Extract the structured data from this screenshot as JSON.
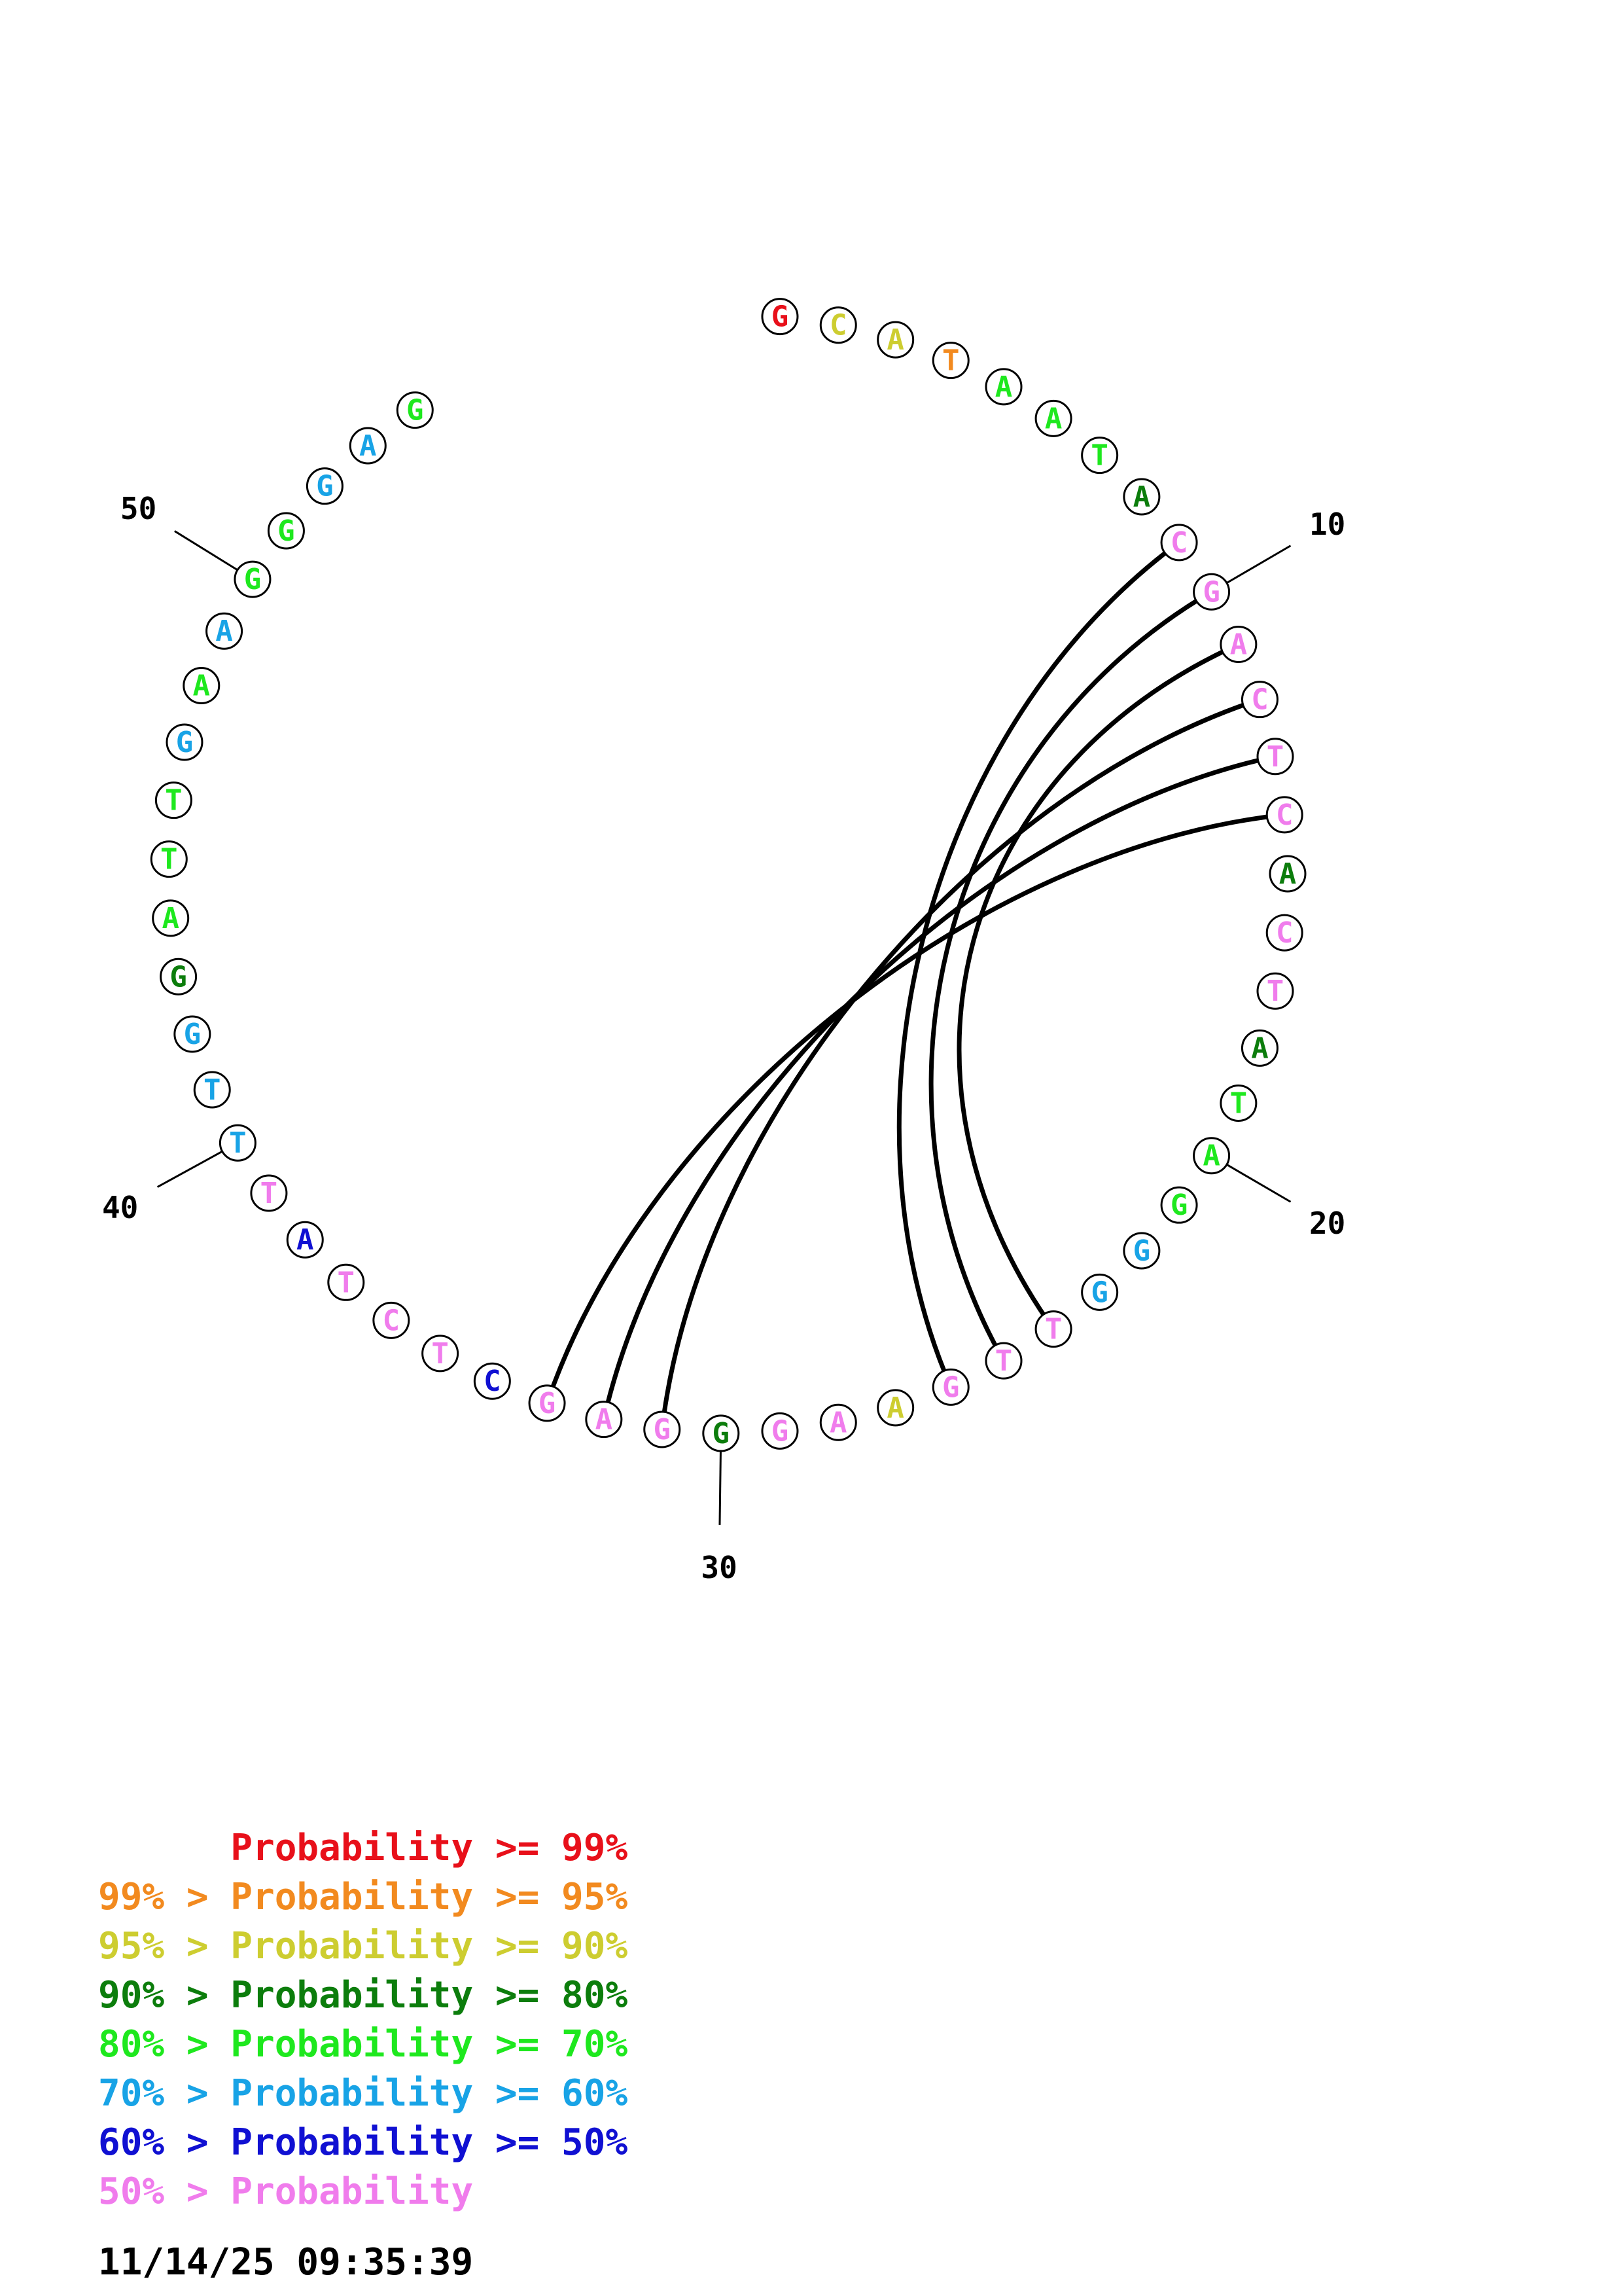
{
  "colors": {
    "red": "#e8101a",
    "orange": "#f28a1f",
    "yellow": "#cdcd30",
    "darkgreen": "#0c7d0c",
    "green": "#1ee81e",
    "cyan": "#18a3e6",
    "blue": "#1010d2",
    "pink": "#f07cec"
  },
  "sequence": [
    {
      "n": 1,
      "base": "G",
      "color": "red"
    },
    {
      "n": 2,
      "base": "C",
      "color": "yellow"
    },
    {
      "n": 3,
      "base": "A",
      "color": "yellow"
    },
    {
      "n": 4,
      "base": "T",
      "color": "orange"
    },
    {
      "n": 5,
      "base": "A",
      "color": "green"
    },
    {
      "n": 6,
      "base": "A",
      "color": "green"
    },
    {
      "n": 7,
      "base": "T",
      "color": "green"
    },
    {
      "n": 8,
      "base": "A",
      "color": "darkgreen"
    },
    {
      "n": 9,
      "base": "C",
      "color": "pink"
    },
    {
      "n": 10,
      "base": "G",
      "color": "pink"
    },
    {
      "n": 11,
      "base": "A",
      "color": "pink"
    },
    {
      "n": 12,
      "base": "C",
      "color": "pink"
    },
    {
      "n": 13,
      "base": "T",
      "color": "pink"
    },
    {
      "n": 14,
      "base": "C",
      "color": "pink"
    },
    {
      "n": 15,
      "base": "A",
      "color": "darkgreen"
    },
    {
      "n": 16,
      "base": "C",
      "color": "pink"
    },
    {
      "n": 17,
      "base": "T",
      "color": "pink"
    },
    {
      "n": 18,
      "base": "A",
      "color": "darkgreen"
    },
    {
      "n": 19,
      "base": "T",
      "color": "green"
    },
    {
      "n": 20,
      "base": "A",
      "color": "green"
    },
    {
      "n": 21,
      "base": "G",
      "color": "green"
    },
    {
      "n": 22,
      "base": "G",
      "color": "cyan"
    },
    {
      "n": 23,
      "base": "G",
      "color": "cyan"
    },
    {
      "n": 24,
      "base": "T",
      "color": "pink"
    },
    {
      "n": 25,
      "base": "T",
      "color": "pink"
    },
    {
      "n": 26,
      "base": "G",
      "color": "pink"
    },
    {
      "n": 27,
      "base": "A",
      "color": "yellow"
    },
    {
      "n": 28,
      "base": "A",
      "color": "pink"
    },
    {
      "n": 29,
      "base": "G",
      "color": "pink"
    },
    {
      "n": 30,
      "base": "G",
      "color": "darkgreen"
    },
    {
      "n": 31,
      "base": "G",
      "color": "pink"
    },
    {
      "n": 32,
      "base": "A",
      "color": "pink"
    },
    {
      "n": 33,
      "base": "G",
      "color": "pink"
    },
    {
      "n": 34,
      "base": "C",
      "color": "blue"
    },
    {
      "n": 35,
      "base": "T",
      "color": "pink"
    },
    {
      "n": 36,
      "base": "C",
      "color": "pink"
    },
    {
      "n": 37,
      "base": "T",
      "color": "pink"
    },
    {
      "n": 38,
      "base": "A",
      "color": "blue"
    },
    {
      "n": 39,
      "base": "T",
      "color": "pink"
    },
    {
      "n": 40,
      "base": "T",
      "color": "cyan"
    },
    {
      "n": 41,
      "base": "T",
      "color": "cyan"
    },
    {
      "n": 42,
      "base": "G",
      "color": "cyan"
    },
    {
      "n": 43,
      "base": "G",
      "color": "darkgreen"
    },
    {
      "n": 44,
      "base": "A",
      "color": "green"
    },
    {
      "n": 45,
      "base": "T",
      "color": "green"
    },
    {
      "n": 46,
      "base": "T",
      "color": "green"
    },
    {
      "n": 47,
      "base": "G",
      "color": "cyan"
    },
    {
      "n": 48,
      "base": "A",
      "color": "green"
    },
    {
      "n": 49,
      "base": "A",
      "color": "cyan"
    },
    {
      "n": 50,
      "base": "G",
      "color": "green"
    },
    {
      "n": 51,
      "base": "G",
      "color": "green"
    },
    {
      "n": 52,
      "base": "G",
      "color": "cyan"
    },
    {
      "n": 53,
      "base": "A",
      "color": "cyan"
    },
    {
      "n": 54,
      "base": "G",
      "color": "green"
    }
  ],
  "pairs": [
    [
      9,
      26
    ],
    [
      10,
      25
    ],
    [
      11,
      24
    ],
    [
      12,
      31
    ],
    [
      13,
      32
    ],
    [
      14,
      33
    ]
  ],
  "tick_labels": [
    "10",
    "20",
    "30",
    "40",
    "50"
  ],
  "legend": [
    {
      "text": "      Probability >= 99%",
      "color": "red"
    },
    {
      "text": "99% > Probability >= 95%",
      "color": "orange"
    },
    {
      "text": "95% > Probability >= 90%",
      "color": "yellow"
    },
    {
      "text": "90% > Probability >= 80%",
      "color": "darkgreen"
    },
    {
      "text": "80% > Probability >= 70%",
      "color": "green"
    },
    {
      "text": "70% > Probability >= 60%",
      "color": "cyan"
    },
    {
      "text": "60% > Probability >= 50%",
      "color": "blue"
    },
    {
      "text": "50% > Probability",
      "color": "pink"
    }
  ],
  "timestamp": "11/14/25 09:35:39"
}
